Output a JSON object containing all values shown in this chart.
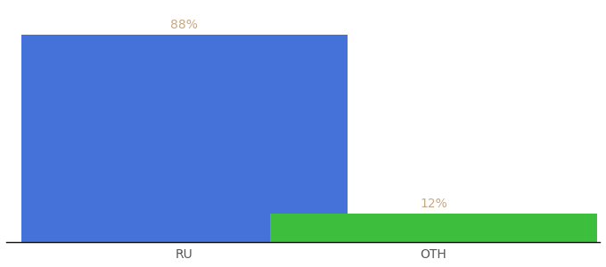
{
  "categories": [
    "RU",
    "OTH"
  ],
  "values": [
    88,
    12
  ],
  "bar_colors": [
    "#4472d9",
    "#3dbf3d"
  ],
  "label_color": "#c8a882",
  "label_fontsize": 10,
  "xlabel_fontsize": 10,
  "xlabel_color": "#555555",
  "background_color": "#ffffff",
  "ylim": [
    0,
    100
  ],
  "bar_width": 0.55,
  "x_positions": [
    0.3,
    0.72
  ],
  "xlim": [
    0.0,
    1.0
  ],
  "label_format": [
    "88%",
    "12%"
  ]
}
